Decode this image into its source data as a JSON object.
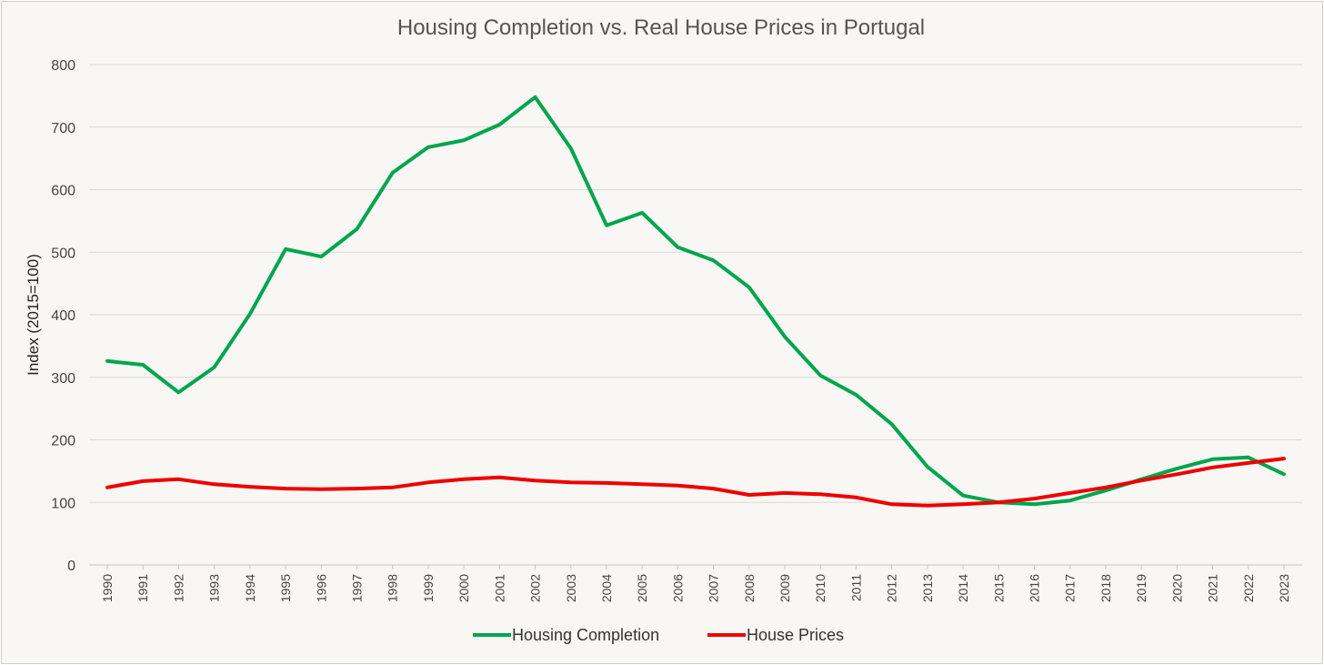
{
  "chart_data": {
    "type": "line",
    "title": "Housing Completion vs. Real House Prices in Portugal",
    "xlabel": "",
    "ylabel": "Index (2015=100)",
    "ylim": [
      0,
      800
    ],
    "yticks": [
      0,
      100,
      200,
      300,
      400,
      500,
      600,
      700,
      800
    ],
    "grid": true,
    "legend": "bottom",
    "categories": [
      "1990",
      "1991",
      "1992",
      "1993",
      "1994",
      "1995",
      "1996",
      "1997",
      "1998",
      "1999",
      "2000",
      "2001",
      "2002",
      "2003",
      "2004",
      "2005",
      "2006",
      "2007",
      "2008",
      "2009",
      "2010",
      "2011",
      "2012",
      "2013",
      "2014",
      "2015",
      "2016",
      "2017",
      "2018",
      "2019",
      "2020",
      "2021",
      "2022",
      "2023"
    ],
    "series": [
      {
        "name": "Housing Completion",
        "color": "#00a54f",
        "values": [
          326,
          320,
          276,
          316,
          401,
          505,
          493,
          537,
          627,
          668,
          679,
          704,
          748,
          666,
          543,
          563,
          508,
          487,
          444,
          365,
          303,
          272,
          225,
          157,
          111,
          100,
          97,
          103,
          119,
          137,
          154,
          169,
          172,
          145
        ]
      },
      {
        "name": "House Prices",
        "color": "#ee0000",
        "values": [
          124,
          134,
          137,
          129,
          125,
          122,
          121,
          122,
          124,
          132,
          137,
          140,
          135,
          132,
          131,
          129,
          127,
          122,
          112,
          115,
          113,
          108,
          97,
          95,
          97,
          100,
          106,
          115,
          124,
          135,
          145,
          156,
          163,
          170
        ]
      }
    ]
  }
}
